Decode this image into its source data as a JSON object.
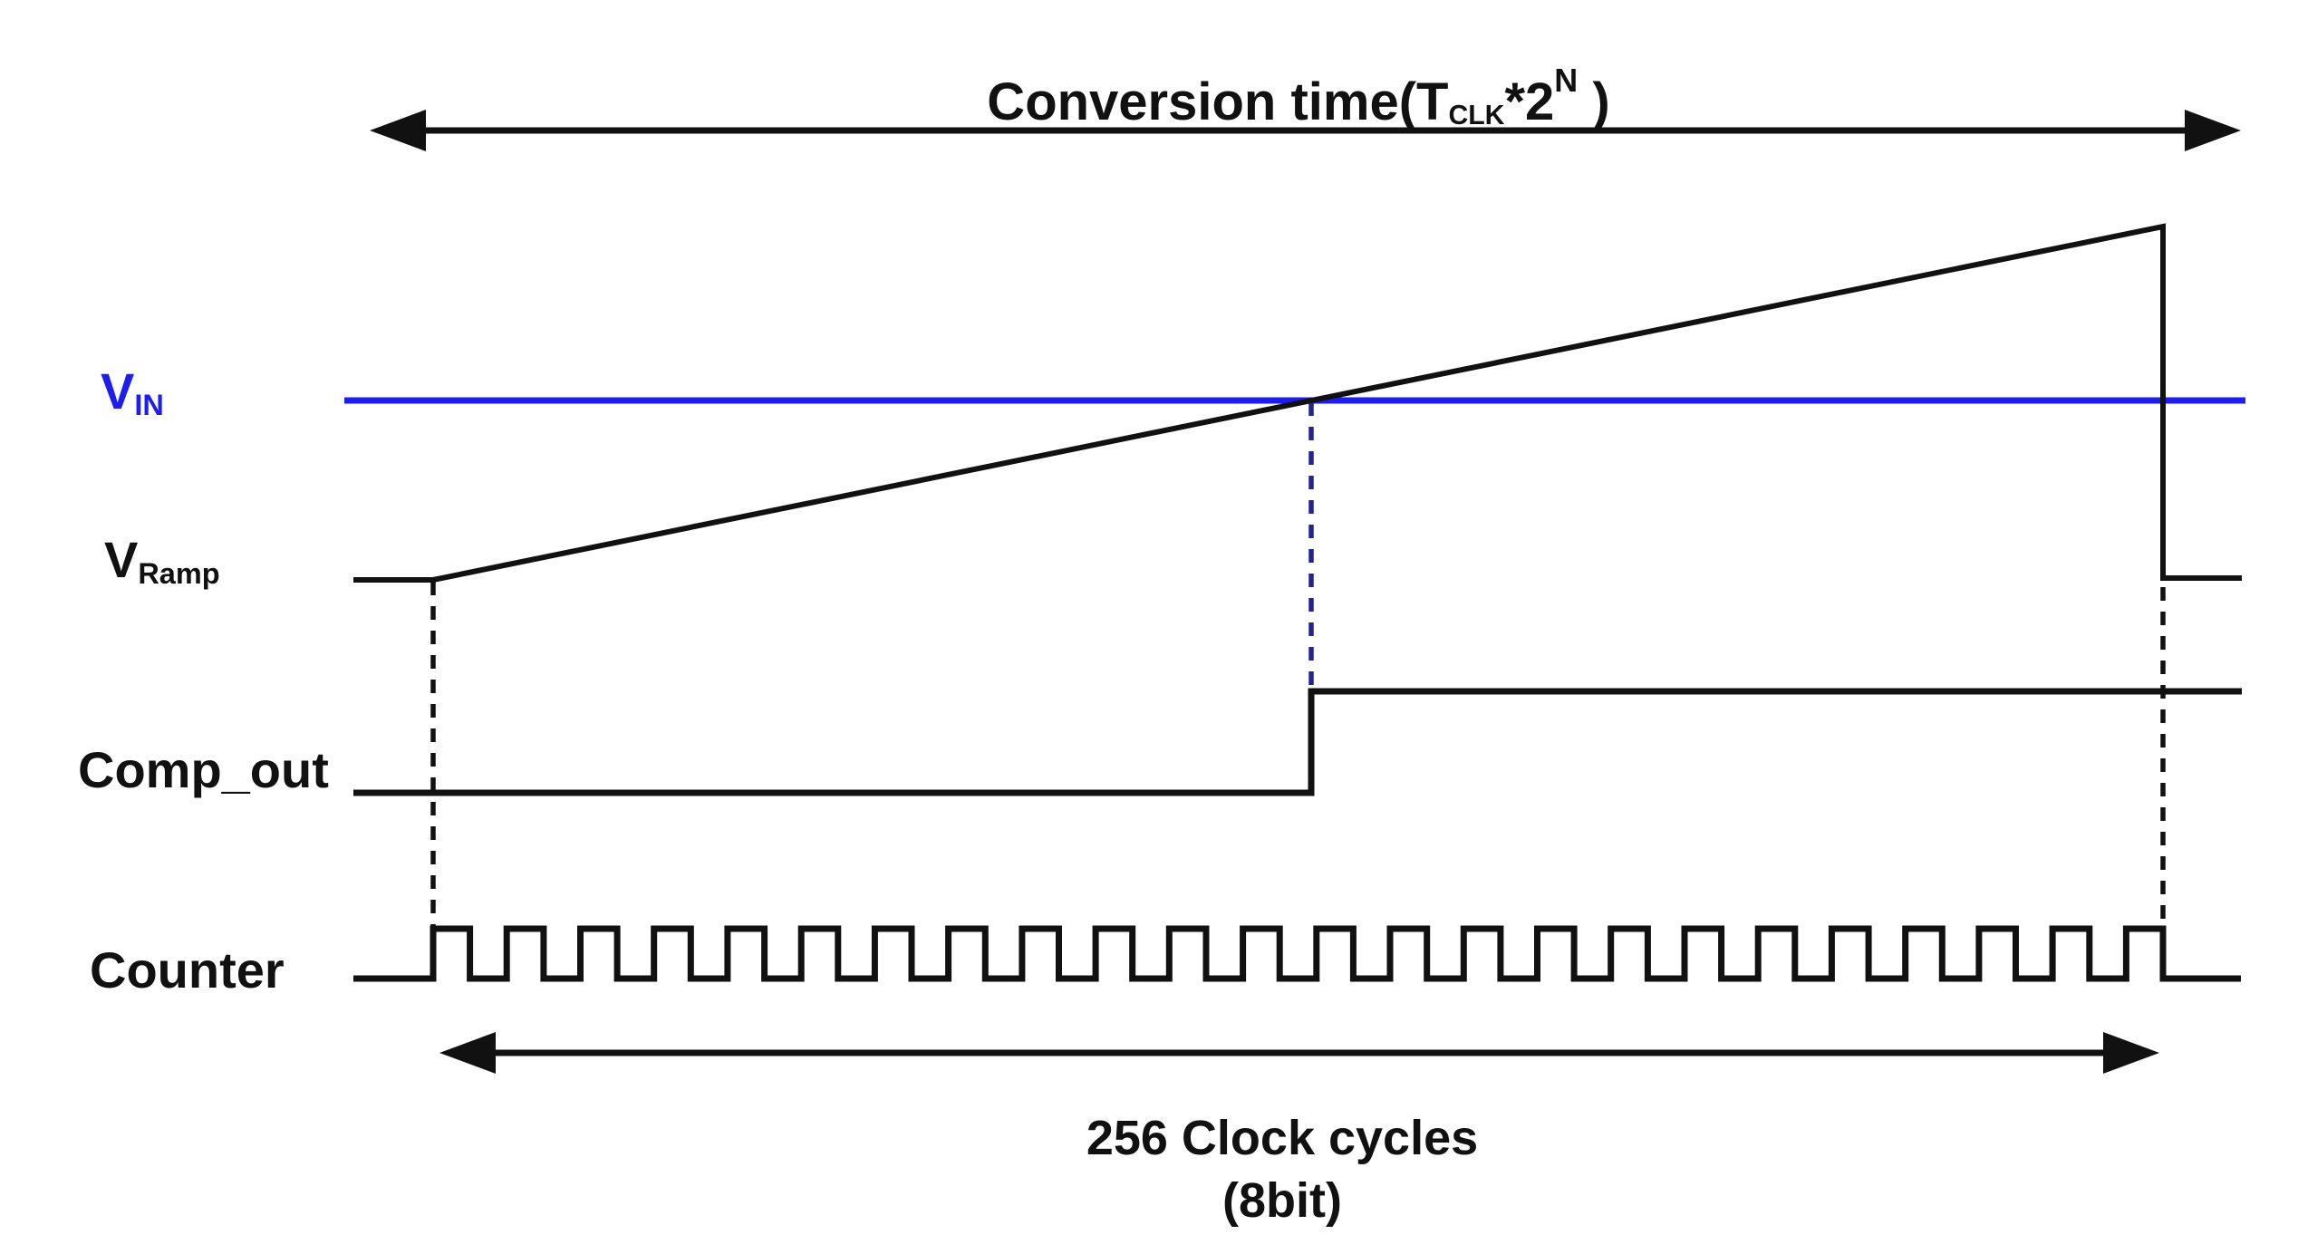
{
  "title": {
    "part1": "Conversion time(T",
    "sub": "CLK",
    "part2": "*2",
    "sup": "N",
    "part3": " )"
  },
  "signals": {
    "vin": {
      "main": "V",
      "sub": "IN"
    },
    "vramp": {
      "main": "V",
      "sub": "Ramp"
    },
    "comp_out": {
      "label": "Comp_out"
    },
    "counter": {
      "label": "Counter"
    }
  },
  "footer": {
    "line1": "256 Clock cycles",
    "line2": "(8bit)"
  },
  "waveforms": {
    "type": "timing",
    "signal_order": [
      "VIN",
      "VRamp",
      "Comp_out",
      "Counter"
    ],
    "conversion_window_clock_cycles": 256,
    "resolution_bits": 8,
    "counter_pulses_shown": 24,
    "vin_shape": "constant level crossed by ramp",
    "vramp_shape": "flat baseline, linear rise across conversion window, reset to baseline at end",
    "comp_out_shape": "low until ramp crosses VIN, then high until end",
    "counter_shape": "idle low, square-wave clock during conversion window, low after"
  },
  "colors": {
    "vin_line": "#1d1df0",
    "crossing_dash": "#24248f",
    "waveform": "#111111"
  }
}
